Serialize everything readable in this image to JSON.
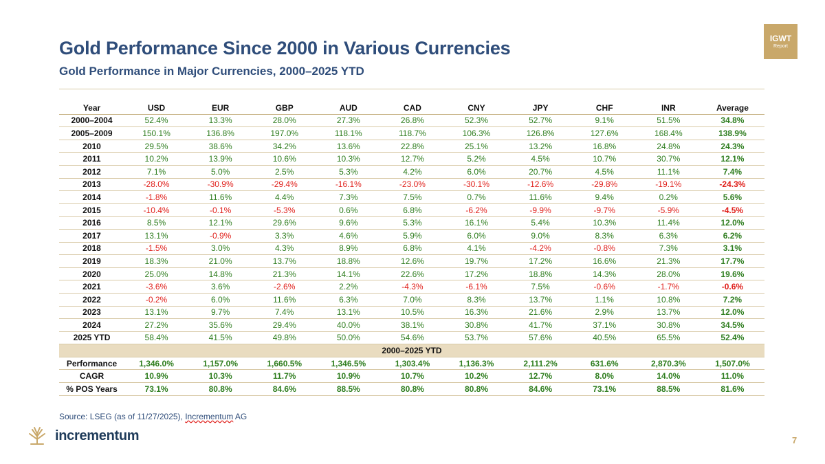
{
  "header": {
    "title": "Gold Performance Since 2000 in Various Currencies",
    "subtitle": "Gold Performance in Major Currencies, 2000–2025 YTD",
    "badge_line1": "IGWT",
    "badge_line2": "Report"
  },
  "table": {
    "columns": [
      "Year",
      "USD",
      "EUR",
      "GBP",
      "AUD",
      "CAD",
      "CNY",
      "JPY",
      "CHF",
      "INR",
      "Average"
    ],
    "rows": [
      [
        "2000–2004",
        "52.4%",
        "13.3%",
        "28.0%",
        "27.3%",
        "26.8%",
        "52.3%",
        "52.7%",
        "9.1%",
        "51.5%",
        "34.8%"
      ],
      [
        "2005–2009",
        "150.1%",
        "136.8%",
        "197.0%",
        "118.1%",
        "118.7%",
        "106.3%",
        "126.8%",
        "127.6%",
        "168.4%",
        "138.9%"
      ],
      [
        "2010",
        "29.5%",
        "38.6%",
        "34.2%",
        "13.6%",
        "22.8%",
        "25.1%",
        "13.2%",
        "16.8%",
        "24.8%",
        "24.3%"
      ],
      [
        "2011",
        "10.2%",
        "13.9%",
        "10.6%",
        "10.3%",
        "12.7%",
        "5.2%",
        "4.5%",
        "10.7%",
        "30.7%",
        "12.1%"
      ],
      [
        "2012",
        "7.1%",
        "5.0%",
        "2.5%",
        "5.3%",
        "4.2%",
        "6.0%",
        "20.7%",
        "4.5%",
        "11.1%",
        "7.4%"
      ],
      [
        "2013",
        "-28.0%",
        "-30.9%",
        "-29.4%",
        "-16.1%",
        "-23.0%",
        "-30.1%",
        "-12.6%",
        "-29.8%",
        "-19.1%",
        "-24.3%"
      ],
      [
        "2014",
        "-1.8%",
        "11.6%",
        "4.4%",
        "7.3%",
        "7.5%",
        "0.7%",
        "11.6%",
        "9.4%",
        "0.2%",
        "5.6%"
      ],
      [
        "2015",
        "-10.4%",
        "-0.1%",
        "-5.3%",
        "0.6%",
        "6.8%",
        "-6.2%",
        "-9.9%",
        "-9.7%",
        "-5.9%",
        "-4.5%"
      ],
      [
        "2016",
        "8.5%",
        "12.1%",
        "29.6%",
        "9.6%",
        "5.3%",
        "16.1%",
        "5.4%",
        "10.3%",
        "11.4%",
        "12.0%"
      ],
      [
        "2017",
        "13.1%",
        "-0.9%",
        "3.3%",
        "4.6%",
        "5.9%",
        "6.0%",
        "9.0%",
        "8.3%",
        "6.3%",
        "6.2%"
      ],
      [
        "2018",
        "-1.5%",
        "3.0%",
        "4.3%",
        "8.9%",
        "6.8%",
        "4.1%",
        "-4.2%",
        "-0.8%",
        "7.3%",
        "3.1%"
      ],
      [
        "2019",
        "18.3%",
        "21.0%",
        "13.7%",
        "18.8%",
        "12.6%",
        "19.7%",
        "17.2%",
        "16.6%",
        "21.3%",
        "17.7%"
      ],
      [
        "2020",
        "25.0%",
        "14.8%",
        "21.3%",
        "14.1%",
        "22.6%",
        "17.2%",
        "18.8%",
        "14.3%",
        "28.0%",
        "19.6%"
      ],
      [
        "2021",
        "-3.6%",
        "3.6%",
        "-2.6%",
        "2.2%",
        "-4.3%",
        "-6.1%",
        "7.5%",
        "-0.6%",
        "-1.7%",
        "-0.6%"
      ],
      [
        "2022",
        "-0.2%",
        "6.0%",
        "11.6%",
        "6.3%",
        "7.0%",
        "8.3%",
        "13.7%",
        "1.1%",
        "10.8%",
        "7.2%"
      ],
      [
        "2023",
        "13.1%",
        "9.7%",
        "7.4%",
        "13.1%",
        "10.5%",
        "16.3%",
        "21.6%",
        "2.9%",
        "13.7%",
        "12.0%"
      ],
      [
        "2024",
        "27.2%",
        "35.6%",
        "29.4%",
        "40.0%",
        "38.1%",
        "30.8%",
        "41.7%",
        "37.1%",
        "30.8%",
        "34.5%"
      ],
      [
        "2025 YTD",
        "58.4%",
        "41.5%",
        "49.8%",
        "50.0%",
        "54.6%",
        "53.7%",
        "57.6%",
        "40.5%",
        "65.5%",
        "52.4%"
      ]
    ],
    "section_label": "2000–2025 YTD",
    "summary_rows": [
      [
        "Performance",
        "1,346.0%",
        "1,157.0%",
        "1,660.5%",
        "1,346.5%",
        "1,303.4%",
        "1,136.3%",
        "2,111.2%",
        "631.6%",
        "2,870.3%",
        "1,507.0%"
      ],
      [
        "CAGR",
        "10.9%",
        "10.3%",
        "11.7%",
        "10.9%",
        "10.7%",
        "10.2%",
        "12.7%",
        "8.0%",
        "14.0%",
        "11.0%"
      ],
      [
        "% POS Years",
        "73.1%",
        "80.8%",
        "84.6%",
        "88.5%",
        "80.8%",
        "80.8%",
        "84.6%",
        "73.1%",
        "88.5%",
        "81.6%"
      ]
    ]
  },
  "footer": {
    "source_prefix": "Source: LSEG (as of 11/27/2025), ",
    "source_link": "Incrementum",
    "source_suffix": " AG",
    "brand": "incrementum",
    "page_number": "7"
  },
  "colors": {
    "title": "#2f4d7a",
    "positive": "#2e7d1e",
    "negative": "#e0201b",
    "gold": "#c9a86a",
    "section_bg": "#e9dcc0"
  }
}
